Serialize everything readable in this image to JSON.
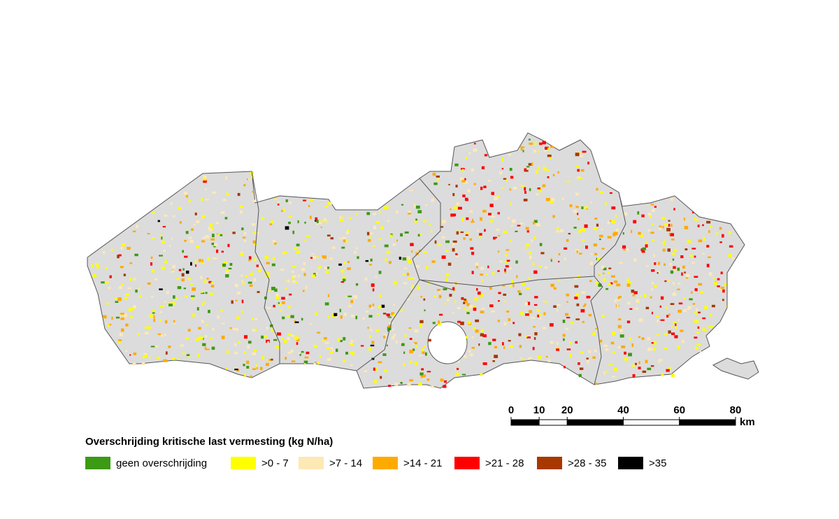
{
  "title": "Overschrijding kritische last vermesting (kg N/ha)",
  "legend": [
    {
      "label": "geen overschrijding",
      "color": "#3c9a14"
    },
    {
      "label": ">0 - 7",
      "color": "#ffff00"
    },
    {
      "label": ">7 - 14",
      "color": "#fde9b4"
    },
    {
      "label": ">14 - 21",
      "color": "#ffaa00"
    },
    {
      "label": ">21 - 28",
      "color": "#ff0000"
    },
    {
      "label": ">28 - 35",
      "color": "#a83800"
    },
    {
      "label": ">35",
      "color": "#000000"
    }
  ],
  "scale_bar": {
    "ticks": [
      0,
      10,
      20,
      40,
      60,
      80
    ],
    "unit": "km"
  }
}
